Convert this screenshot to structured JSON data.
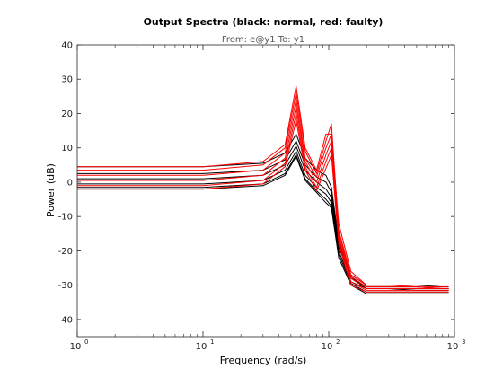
{
  "chart_data": {
    "type": "line",
    "title": "Output Spectra (black: normal, red: faulty)",
    "subtitle": "From: e@y1  To: y1",
    "xlabel": "Frequency  (rad/s)",
    "ylabel": "Power (dB)",
    "xscale": "log",
    "xlim": [
      1,
      1000
    ],
    "ylim": [
      -45,
      40
    ],
    "x_ticks": [
      {
        "base": "10",
        "exp": "0"
      },
      {
        "base": "10",
        "exp": "1"
      },
      {
        "base": "10",
        "exp": "2"
      },
      {
        "base": "10",
        "exp": "3"
      }
    ],
    "y_ticks": [
      "40",
      "30",
      "20",
      "10",
      "0",
      "-10",
      "-20",
      "-30",
      "-40"
    ],
    "y_tick_values": [
      40,
      30,
      20,
      10,
      0,
      -10,
      -20,
      -30,
      -40
    ],
    "grid": false,
    "x": [
      1,
      10,
      30,
      45,
      55,
      65,
      80,
      95,
      105,
      120,
      150,
      200,
      300,
      500,
      800,
      900
    ],
    "series": [
      {
        "color": "#000000",
        "values": [
          4.5,
          4.5,
          5.5,
          8.5,
          14,
          7,
          3.5,
          2,
          -1.5,
          -17,
          -27,
          -30,
          -30,
          -30,
          -30.5,
          -30.5
        ]
      },
      {
        "color": "#000000",
        "values": [
          2.5,
          2.5,
          3.5,
          6.5,
          12,
          5,
          1.5,
          0,
          -3,
          -18,
          -28,
          -30.5,
          -30.5,
          -30.5,
          -31,
          -31
        ]
      },
      {
        "color": "#000000",
        "values": [
          1,
          1,
          2,
          5,
          10.5,
          3.5,
          0,
          -2,
          -4.5,
          -19,
          -27.5,
          -31,
          -31,
          -31,
          -31,
          -31
        ]
      },
      {
        "color": "#000000",
        "values": [
          -0.5,
          -0.5,
          0.5,
          3.5,
          9,
          2,
          -1.5,
          -3.5,
          -6,
          -20,
          -29,
          -31,
          -31,
          -31.5,
          -31.5,
          -31.5
        ]
      },
      {
        "color": "#000000",
        "values": [
          -1.5,
          -1.5,
          -0.5,
          2.5,
          8,
          1,
          -2.5,
          -5,
          -7,
          -21,
          -29.5,
          -32,
          -32,
          -32,
          -32,
          -32
        ]
      },
      {
        "color": "#000000",
        "values": [
          -2,
          -2,
          -1,
          2,
          7.5,
          0.5,
          -3,
          -6,
          -7.5,
          -22,
          -30,
          -32.5,
          -32.5,
          -32.5,
          -32.5,
          -32.5
        ]
      },
      {
        "color": "#ff0000",
        "values": [
          4.5,
          4.5,
          6,
          11,
          28,
          10,
          3.5,
          14,
          14,
          -12,
          -26,
          -30,
          -30,
          -30,
          -30,
          -30
        ]
      },
      {
        "color": "#ff0000",
        "values": [
          3.5,
          3.5,
          5,
          10,
          26,
          9,
          2.5,
          12,
          17,
          -14,
          -27,
          -30,
          -30,
          -30.5,
          -30.5,
          -30.5
        ]
      },
      {
        "color": "#ff0000",
        "values": [
          2,
          2,
          3.5,
          8.5,
          24,
          7,
          1.5,
          10,
          14,
          -15,
          -27.5,
          -30.5,
          -30.5,
          -30.5,
          -31,
          -31
        ]
      },
      {
        "color": "#ff0000",
        "values": [
          0.5,
          0.5,
          2,
          7,
          22,
          6,
          0,
          8,
          12,
          -16,
          -28,
          -31,
          -31,
          -31,
          -31,
          -31
        ]
      },
      {
        "color": "#ff0000",
        "values": [
          -1,
          -1,
          0.5,
          5.5,
          20,
          4.5,
          -1.5,
          6,
          10,
          -17,
          -29,
          -31.5,
          -31.5,
          -31.5,
          -31.5,
          -31.5
        ]
      },
      {
        "color": "#ff0000",
        "values": [
          -2,
          -2,
          -0.5,
          4.5,
          18,
          3.5,
          -2.5,
          4,
          8,
          -18,
          -30,
          -32,
          -32,
          -32,
          -32,
          -32
        ]
      }
    ]
  }
}
